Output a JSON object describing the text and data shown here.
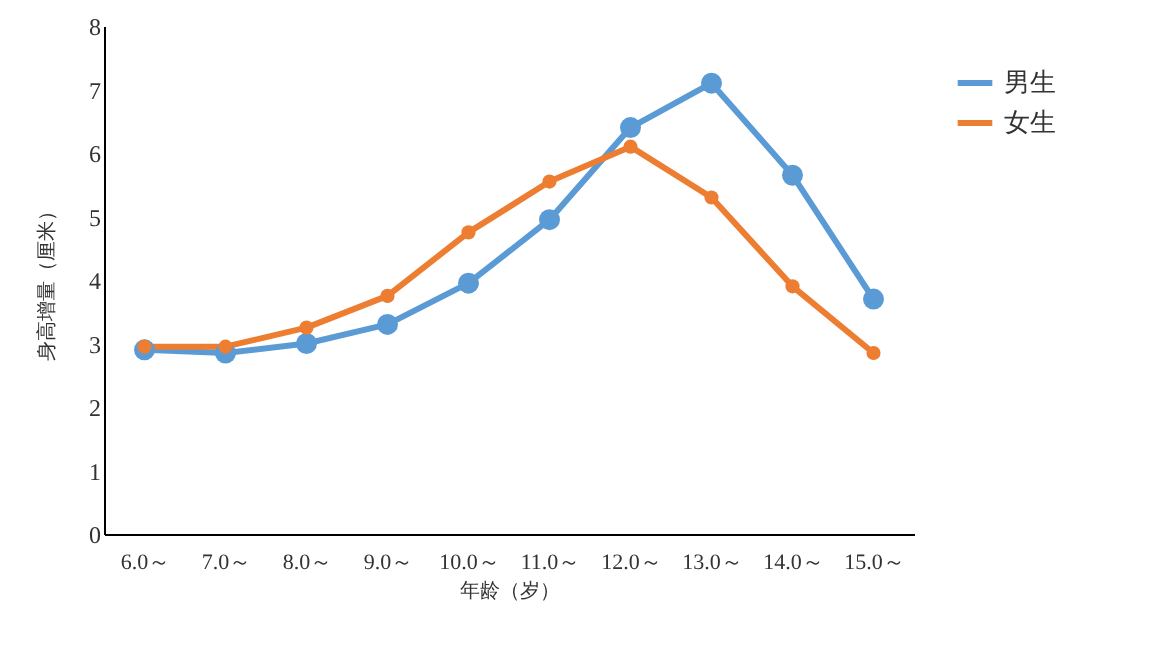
{
  "chart_data": {
    "type": "line",
    "xlabel": "年龄（岁）",
    "ylabel": "身高增量（厘米）",
    "categories": [
      "6.0～",
      "7.0～",
      "8.0～",
      "9.0～",
      "10.0～",
      "11.0～",
      "12.0～",
      "13.0～",
      "14.0～",
      "15.0～"
    ],
    "series": [
      {
        "name": "男生",
        "color": "#5b9bd5",
        "values": [
          2.9,
          2.85,
          3.0,
          3.3,
          3.95,
          4.95,
          6.4,
          7.1,
          5.65,
          3.7
        ]
      },
      {
        "name": "女生",
        "color": "#ed7d31",
        "values": [
          2.95,
          2.95,
          3.25,
          3.75,
          4.75,
          5.55,
          6.1,
          5.3,
          3.9,
          2.85
        ]
      }
    ],
    "ylim": [
      0,
      8
    ],
    "yticks": [
      0,
      1,
      2,
      3,
      4,
      5,
      6,
      7,
      8
    ],
    "grid": false,
    "legend": "top right",
    "marker": "circle",
    "line_style": "solid"
  }
}
